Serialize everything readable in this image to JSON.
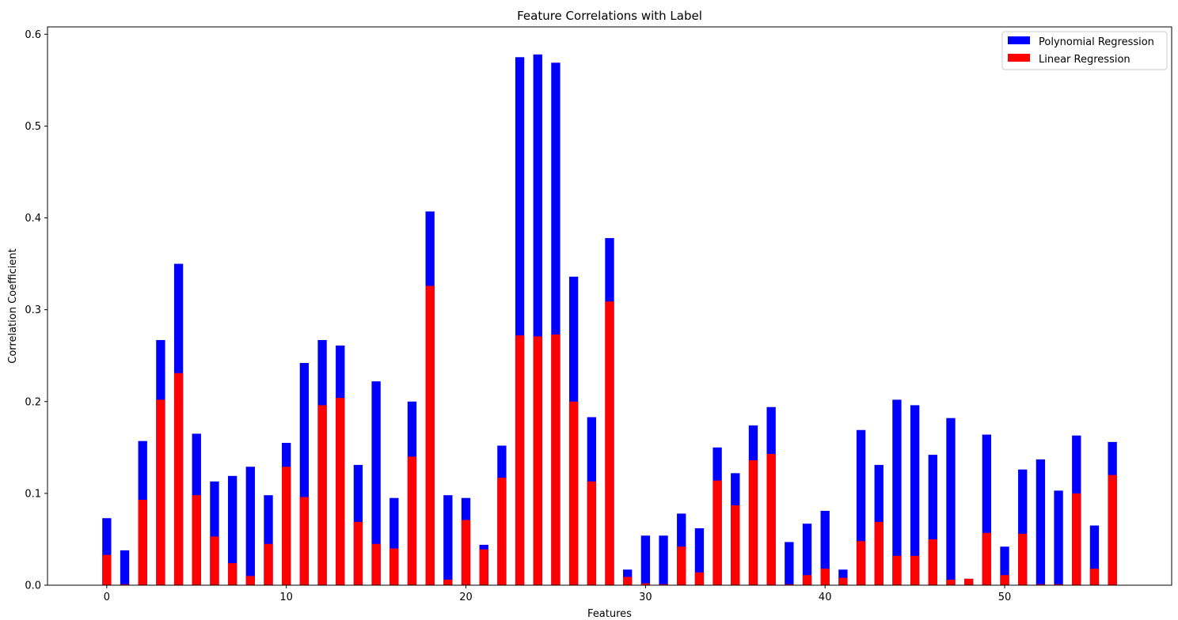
{
  "chart_data": {
    "type": "bar",
    "title": "Feature Correlations with Label",
    "xlabel": "Features",
    "ylabel": "Correlation Coefficient",
    "xlim": [
      -3.3,
      59.3
    ],
    "ylim": [
      0,
      0.608
    ],
    "x_ticks": [
      0,
      10,
      20,
      30,
      40,
      50
    ],
    "y_ticks": [
      0.0,
      0.1,
      0.2,
      0.3,
      0.4,
      0.5,
      0.6
    ],
    "y_tick_labels": [
      "0.0",
      "0.1",
      "0.2",
      "0.3",
      "0.4",
      "0.5",
      "0.6"
    ],
    "legend_position": "top-right",
    "x": [
      0,
      1,
      2,
      3,
      4,
      5,
      6,
      7,
      8,
      9,
      10,
      11,
      12,
      13,
      14,
      15,
      16,
      17,
      18,
      19,
      20,
      21,
      22,
      23,
      24,
      25,
      26,
      27,
      28,
      29,
      30,
      31,
      32,
      33,
      34,
      35,
      36,
      37,
      38,
      39,
      40,
      41,
      42,
      43,
      44,
      45,
      46,
      47,
      48,
      49,
      50,
      51,
      52,
      53,
      54,
      55,
      56
    ],
    "series": [
      {
        "name": "Polynomial Regression",
        "color": "#0000ff",
        "values": [
          0.073,
          0.038,
          0.157,
          0.267,
          0.35,
          0.165,
          0.113,
          0.119,
          0.129,
          0.098,
          0.155,
          0.242,
          0.267,
          0.261,
          0.131,
          0.222,
          0.095,
          0.2,
          0.407,
          0.098,
          0.095,
          0.044,
          0.152,
          0.575,
          0.578,
          0.569,
          0.336,
          0.183,
          0.378,
          0.017,
          0.054,
          0.054,
          0.078,
          0.062,
          0.15,
          0.122,
          0.174,
          0.194,
          0.047,
          0.067,
          0.081,
          0.017,
          0.169,
          0.131,
          0.202,
          0.196,
          0.142,
          0.182,
          0.007,
          0.164,
          0.042,
          0.126,
          0.137,
          0.103,
          0.163,
          0.065,
          0.156
        ]
      },
      {
        "name": "Linear Regression",
        "color": "#ff0000",
        "values": [
          0.033,
          0.001,
          0.093,
          0.202,
          0.231,
          0.098,
          0.053,
          0.024,
          0.01,
          0.045,
          0.129,
          0.096,
          0.196,
          0.204,
          0.069,
          0.045,
          0.04,
          0.14,
          0.326,
          0.006,
          0.071,
          0.039,
          0.117,
          0.272,
          0.271,
          0.273,
          0.2,
          0.113,
          0.309,
          0.009,
          0.002,
          0.001,
          0.042,
          0.014,
          0.114,
          0.087,
          0.136,
          0.143,
          0.001,
          0.011,
          0.018,
          0.008,
          0.048,
          0.069,
          0.032,
          0.032,
          0.05,
          0.006,
          0.007,
          0.057,
          0.011,
          0.056,
          0.001,
          0.001,
          0.1,
          0.018,
          0.12
        ]
      }
    ]
  }
}
